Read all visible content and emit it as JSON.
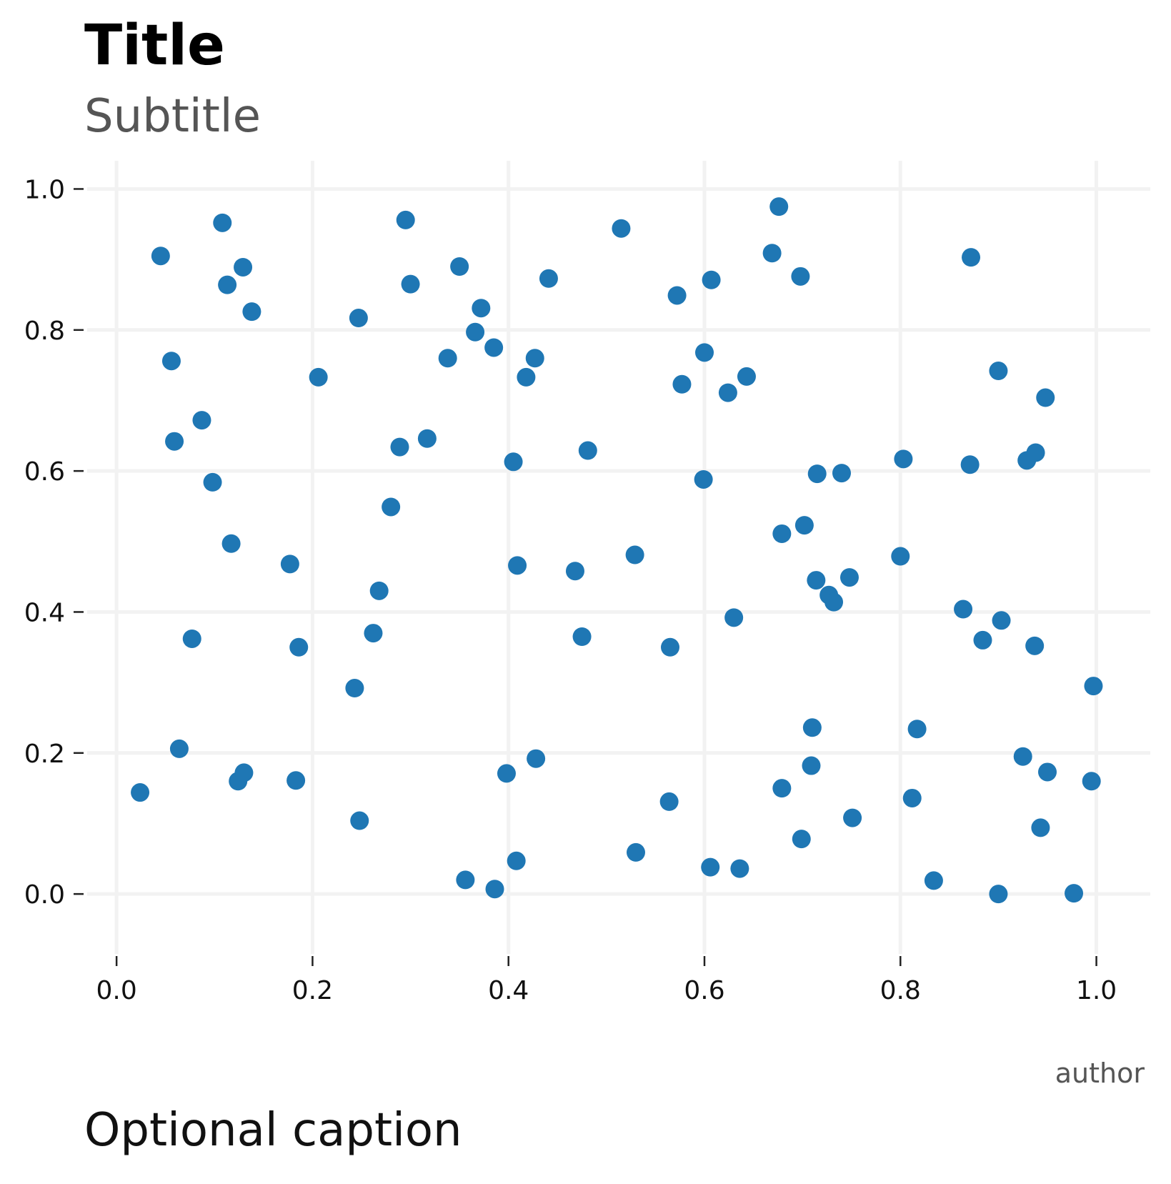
{
  "chart_data": {
    "type": "scatter",
    "title": "Title",
    "subtitle": "Subtitle",
    "caption": "Optional caption",
    "author": "author",
    "xlabel": "",
    "ylabel": "",
    "xlim": [
      -0.03,
      1.055
    ],
    "ylim": [
      -0.085,
      1.04
    ],
    "xticks": [
      "0.0",
      "0.2",
      "0.4",
      "0.6",
      "0.8",
      "1.0"
    ],
    "yticks": [
      "1.0",
      "0.8",
      "0.6",
      "0.4",
      "0.2",
      "0.0"
    ],
    "grid": true,
    "marker_color": "#1f77b4",
    "grid_color": "#f2f2f2",
    "points": [
      {
        "x": 0.045,
        "y": 0.905
      },
      {
        "x": 0.108,
        "y": 0.952
      },
      {
        "x": 0.113,
        "y": 0.864
      },
      {
        "x": 0.129,
        "y": 0.889
      },
      {
        "x": 0.138,
        "y": 0.826
      },
      {
        "x": 0.056,
        "y": 0.756
      },
      {
        "x": 0.059,
        "y": 0.642
      },
      {
        "x": 0.087,
        "y": 0.672
      },
      {
        "x": 0.098,
        "y": 0.584
      },
      {
        "x": 0.117,
        "y": 0.497
      },
      {
        "x": 0.077,
        "y": 0.362
      },
      {
        "x": 0.064,
        "y": 0.206
      },
      {
        "x": 0.024,
        "y": 0.144
      },
      {
        "x": 0.124,
        "y": 0.16
      },
      {
        "x": 0.13,
        "y": 0.172
      },
      {
        "x": 0.177,
        "y": 0.468
      },
      {
        "x": 0.186,
        "y": 0.35
      },
      {
        "x": 0.183,
        "y": 0.161
      },
      {
        "x": 0.206,
        "y": 0.733
      },
      {
        "x": 0.247,
        "y": 0.817
      },
      {
        "x": 0.243,
        "y": 0.292
      },
      {
        "x": 0.248,
        "y": 0.104
      },
      {
        "x": 0.262,
        "y": 0.37
      },
      {
        "x": 0.268,
        "y": 0.43
      },
      {
        "x": 0.28,
        "y": 0.549
      },
      {
        "x": 0.289,
        "y": 0.634
      },
      {
        "x": 0.295,
        "y": 0.956
      },
      {
        "x": 0.3,
        "y": 0.865
      },
      {
        "x": 0.317,
        "y": 0.646
      },
      {
        "x": 0.338,
        "y": 0.76
      },
      {
        "x": 0.35,
        "y": 0.89
      },
      {
        "x": 0.356,
        "y": 0.02
      },
      {
        "x": 0.366,
        "y": 0.797
      },
      {
        "x": 0.372,
        "y": 0.831
      },
      {
        "x": 0.385,
        "y": 0.775
      },
      {
        "x": 0.386,
        "y": 0.007
      },
      {
        "x": 0.398,
        "y": 0.171
      },
      {
        "x": 0.405,
        "y": 0.613
      },
      {
        "x": 0.409,
        "y": 0.466
      },
      {
        "x": 0.408,
        "y": 0.047
      },
      {
        "x": 0.418,
        "y": 0.733
      },
      {
        "x": 0.427,
        "y": 0.76
      },
      {
        "x": 0.428,
        "y": 0.192
      },
      {
        "x": 0.441,
        "y": 0.873
      },
      {
        "x": 0.468,
        "y": 0.458
      },
      {
        "x": 0.475,
        "y": 0.365
      },
      {
        "x": 0.481,
        "y": 0.629
      },
      {
        "x": 0.515,
        "y": 0.944
      },
      {
        "x": 0.529,
        "y": 0.481
      },
      {
        "x": 0.53,
        "y": 0.059
      },
      {
        "x": 0.565,
        "y": 0.35
      },
      {
        "x": 0.564,
        "y": 0.131
      },
      {
        "x": 0.572,
        "y": 0.849
      },
      {
        "x": 0.577,
        "y": 0.723
      },
      {
        "x": 0.599,
        "y": 0.588
      },
      {
        "x": 0.6,
        "y": 0.768
      },
      {
        "x": 0.606,
        "y": 0.038
      },
      {
        "x": 0.607,
        "y": 0.871
      },
      {
        "x": 0.624,
        "y": 0.711
      },
      {
        "x": 0.63,
        "y": 0.392
      },
      {
        "x": 0.636,
        "y": 0.036
      },
      {
        "x": 0.643,
        "y": 0.734
      },
      {
        "x": 0.669,
        "y": 0.909
      },
      {
        "x": 0.676,
        "y": 0.975
      },
      {
        "x": 0.679,
        "y": 0.511
      },
      {
        "x": 0.679,
        "y": 0.15
      },
      {
        "x": 0.698,
        "y": 0.876
      },
      {
        "x": 0.702,
        "y": 0.523
      },
      {
        "x": 0.699,
        "y": 0.078
      },
      {
        "x": 0.71,
        "y": 0.236
      },
      {
        "x": 0.709,
        "y": 0.182
      },
      {
        "x": 0.715,
        "y": 0.596
      },
      {
        "x": 0.714,
        "y": 0.445
      },
      {
        "x": 0.727,
        "y": 0.424
      },
      {
        "x": 0.732,
        "y": 0.414
      },
      {
        "x": 0.74,
        "y": 0.597
      },
      {
        "x": 0.748,
        "y": 0.449
      },
      {
        "x": 0.751,
        "y": 0.108
      },
      {
        "x": 0.8,
        "y": 0.479
      },
      {
        "x": 0.803,
        "y": 0.617
      },
      {
        "x": 0.812,
        "y": 0.136
      },
      {
        "x": 0.817,
        "y": 0.234
      },
      {
        "x": 0.834,
        "y": 0.019
      },
      {
        "x": 0.864,
        "y": 0.404
      },
      {
        "x": 0.872,
        "y": 0.903
      },
      {
        "x": 0.871,
        "y": 0.609
      },
      {
        "x": 0.884,
        "y": 0.36
      },
      {
        "x": 0.9,
        "y": 0.742
      },
      {
        "x": 0.903,
        "y": 0.388
      },
      {
        "x": 0.9,
        "y": 0.0
      },
      {
        "x": 0.925,
        "y": 0.195
      },
      {
        "x": 0.929,
        "y": 0.615
      },
      {
        "x": 0.937,
        "y": 0.352
      },
      {
        "x": 0.938,
        "y": 0.626
      },
      {
        "x": 0.943,
        "y": 0.094
      },
      {
        "x": 0.948,
        "y": 0.704
      },
      {
        "x": 0.95,
        "y": 0.173
      },
      {
        "x": 0.977,
        "y": 0.001
      },
      {
        "x": 0.997,
        "y": 0.295
      },
      {
        "x": 0.995,
        "y": 0.16
      }
    ]
  }
}
